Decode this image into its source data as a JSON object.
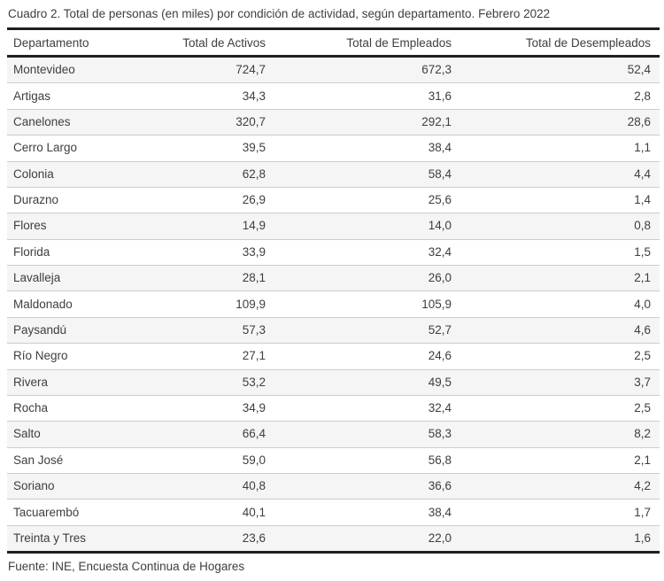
{
  "page": {
    "title": "Cuadro 2. Total de personas (en miles) por condición de actividad, según departamento. Febrero 2022",
    "source": "Fuente: INE, Encuesta Continua de Hogares"
  },
  "chart_data": {
    "type": "table",
    "title": "Cuadro 2. Total de personas (en miles) por condición de actividad, según departamento. Febrero 2022",
    "unit": "miles de personas",
    "columns": [
      "Departamento",
      "Total de Activos",
      "Total de Empleados",
      "Total de Desempleados"
    ],
    "rows": [
      [
        "Montevideo",
        "724,7",
        "672,3",
        "52,4"
      ],
      [
        "Artigas",
        "34,3",
        "31,6",
        "2,8"
      ],
      [
        "Canelones",
        "320,7",
        "292,1",
        "28,6"
      ],
      [
        "Cerro Largo",
        "39,5",
        "38,4",
        "1,1"
      ],
      [
        "Colonia",
        "62,8",
        "58,4",
        "4,4"
      ],
      [
        "Durazno",
        "26,9",
        "25,6",
        "1,4"
      ],
      [
        "Flores",
        "14,9",
        "14,0",
        "0,8"
      ],
      [
        "Florida",
        "33,9",
        "32,4",
        "1,5"
      ],
      [
        "Lavalleja",
        "28,1",
        "26,0",
        "2,1"
      ],
      [
        "Maldonado",
        "109,9",
        "105,9",
        "4,0"
      ],
      [
        "Paysandú",
        "57,3",
        "52,7",
        "4,6"
      ],
      [
        "Río Negro",
        "27,1",
        "24,6",
        "2,5"
      ],
      [
        "Rivera",
        "53,2",
        "49,5",
        "3,7"
      ],
      [
        "Rocha",
        "34,9",
        "32,4",
        "2,5"
      ],
      [
        "Salto",
        "66,4",
        "58,3",
        "8,2"
      ],
      [
        "San José",
        "59,0",
        "56,8",
        "2,1"
      ],
      [
        "Soriano",
        "40,8",
        "36,6",
        "4,2"
      ],
      [
        "Tacuarembó",
        "40,1",
        "38,4",
        "1,7"
      ],
      [
        "Treinta y Tres",
        "23,6",
        "22,0",
        "1,6"
      ]
    ],
    "source": "Fuente: INE, Encuesta Continua de Hogares",
    "layout": {
      "first_column_align": "left",
      "numeric_columns_align": "right",
      "decimal_separator": "comma",
      "zebra_striping": "odd-rows-shaded",
      "text_color": "#3e3e3e",
      "zebra_stripe_color": "#f5f5f5",
      "row_divider_color": "#cccccc",
      "heavy_rule_color": "#1f1f1f",
      "background_color": "#ffffff"
    }
  }
}
